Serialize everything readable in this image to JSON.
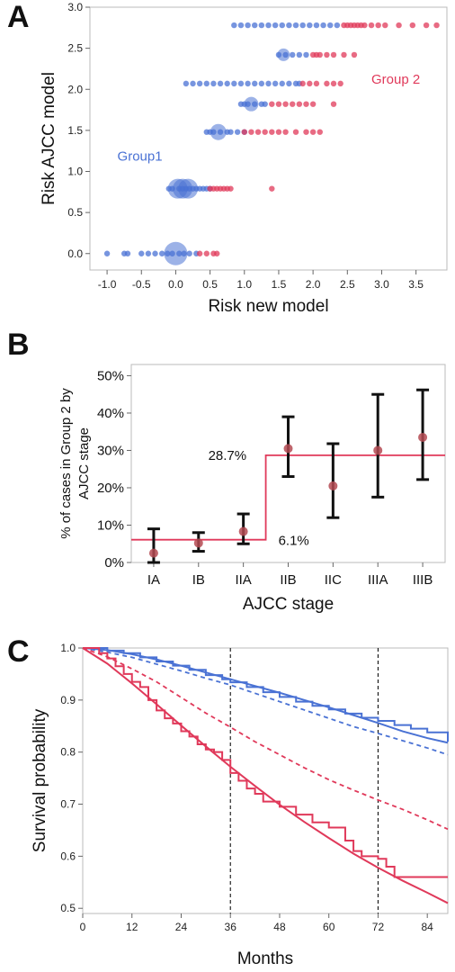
{
  "panels": [
    {
      "letter": "A",
      "chart_data": {
        "type": "scatter",
        "xlabel": "Risk new model",
        "ylabel": "Risk AJCC model",
        "xlim": [
          -1.25,
          3.95
        ],
        "ylim": [
          -0.2,
          3.0
        ],
        "x_ticks": [
          "-1.0",
          "-0.5",
          "0.0",
          "0.5",
          "1.0",
          "1.5",
          "2.0",
          "2.5",
          "3.0",
          "3.5"
        ],
        "x_tick_values": [
          -1.0,
          -0.5,
          0.0,
          0.5,
          1.0,
          1.5,
          2.0,
          2.5,
          3.0,
          3.5
        ],
        "y_ticks": [
          "0.0",
          "0.5",
          "1.0",
          "1.5",
          "2.0",
          "2.5",
          "3.0"
        ],
        "y_tick_values": [
          0.0,
          0.5,
          1.0,
          1.5,
          2.0,
          2.5,
          3.0
        ],
        "annotations": [
          {
            "text": "Group1",
            "x": -0.85,
            "y": 1.13,
            "color": "#4a72d4"
          },
          {
            "text": "Group 2",
            "x": 2.85,
            "y": 2.07,
            "color": "#e0395a"
          }
        ],
        "series": [
          {
            "name": "Group1",
            "color": "#4a72d4",
            "points": [
              {
                "y": 0.0,
                "x": [
                  -1.0,
                  -0.75,
                  -0.7,
                  -0.5,
                  -0.4,
                  -0.3,
                  -0.2,
                  -0.12,
                  -0.05,
                  0.05,
                  0.12,
                  0.2,
                  0.3
                ],
                "big": [
                  0.0
                ],
                "bigsize": 13
              },
              {
                "y": 0.79,
                "x": [
                  -0.1,
                  -0.05,
                  0.05,
                  0.1,
                  0.15,
                  0.2,
                  0.25,
                  0.3,
                  0.35,
                  0.4,
                  0.45,
                  0.5
                ],
                "big": [
                  0.03,
                  0.1,
                  0.18
                ],
                "bigsize": 11
              },
              {
                "y": 1.48,
                "x": [
                  0.45,
                  0.5,
                  0.55,
                  0.65,
                  0.75,
                  0.8,
                  0.9,
                  1.0
                ],
                "big": [
                  0.62
                ],
                "bigsize": 9
              },
              {
                "y": 1.82,
                "x": [
                  0.95,
                  1.0,
                  1.05,
                  1.15,
                  1.25,
                  1.3
                ],
                "big": [
                  1.1
                ],
                "bigsize": 8
              },
              {
                "y": 2.07,
                "x": [
                  0.15,
                  0.25,
                  0.35,
                  0.45,
                  0.55,
                  0.65,
                  0.75,
                  0.85,
                  0.95,
                  1.05,
                  1.15,
                  1.25,
                  1.35,
                  1.45,
                  1.55,
                  1.65,
                  1.75,
                  1.8
                ],
                "big": [],
                "bigsize": 0
              },
              {
                "y": 2.42,
                "x": [
                  1.5,
                  1.6,
                  1.7,
                  1.8,
                  1.9
                ],
                "big": [
                  1.57
                ],
                "bigsize": 7
              },
              {
                "y": 2.78,
                "x": [
                  0.85,
                  0.95,
                  1.05,
                  1.15,
                  1.25,
                  1.35,
                  1.45,
                  1.55,
                  1.65,
                  1.75,
                  1.85,
                  1.95,
                  2.05,
                  2.15,
                  2.25,
                  2.35
                ],
                "big": [],
                "bigsize": 0
              }
            ]
          },
          {
            "name": "Group 2",
            "color": "#e0395a",
            "points": [
              {
                "y": 0.0,
                "x": [
                  0.35,
                  0.45,
                  0.55,
                  0.6
                ],
                "big": [],
                "bigsize": 0
              },
              {
                "y": 0.79,
                "x": [
                  0.5,
                  0.55,
                  0.6,
                  0.65,
                  0.7,
                  0.75,
                  0.8,
                  1.4
                ],
                "big": [],
                "bigsize": 0
              },
              {
                "y": 1.48,
                "x": [
                  1.0,
                  1.1,
                  1.2,
                  1.3,
                  1.4,
                  1.5,
                  1.6,
                  1.75,
                  1.9,
                  2.0,
                  2.1
                ],
                "big": [],
                "bigsize": 0
              },
              {
                "y": 1.82,
                "x": [
                  1.4,
                  1.5,
                  1.6,
                  1.7,
                  1.8,
                  1.9,
                  2.0,
                  2.3
                ],
                "big": [],
                "bigsize": 0
              },
              {
                "y": 2.07,
                "x": [
                  1.85,
                  1.95,
                  2.05,
                  2.2,
                  2.3,
                  2.4
                ],
                "big": [],
                "bigsize": 0
              },
              {
                "y": 2.42,
                "x": [
                  2.0,
                  2.05,
                  2.1,
                  2.2,
                  2.3,
                  2.45,
                  2.6
                ],
                "big": [],
                "bigsize": 0
              },
              {
                "y": 2.78,
                "x": [
                  2.45,
                  2.5,
                  2.55,
                  2.6,
                  2.65,
                  2.7,
                  2.75,
                  2.85,
                  2.95,
                  3.05,
                  3.25,
                  3.45,
                  3.65,
                  3.8
                ],
                "big": [],
                "bigsize": 0
              }
            ]
          }
        ]
      }
    },
    {
      "letter": "B",
      "chart_data": {
        "type": "errorbar",
        "xlabel": "AJCC stage",
        "ylabel": "% of cases in Group 2 by AJCC stage",
        "ylabel_lines": [
          "% of cases in Group 2 by",
          "AJCC stage"
        ],
        "ylim": [
          0,
          0.53
        ],
        "y_ticks": [
          "0%",
          "10%",
          "20%",
          "30%",
          "40%",
          "50%"
        ],
        "y_tick_values": [
          0,
          0.1,
          0.2,
          0.3,
          0.4,
          0.5
        ],
        "categories": [
          "IA",
          "IB",
          "IIA",
          "IIB",
          "IIC",
          "IIIA",
          "IIIB"
        ],
        "values": [
          0.025,
          0.052,
          0.083,
          0.305,
          0.205,
          0.3,
          0.335
        ],
        "lower": [
          0.0,
          0.03,
          0.05,
          0.23,
          0.12,
          0.175,
          0.222
        ],
        "upper": [
          0.09,
          0.08,
          0.13,
          0.39,
          0.318,
          0.45,
          0.462
        ],
        "reference_levels": [
          {
            "label": "6.1%",
            "value": 0.061,
            "from": "IA",
            "to": "IIA"
          },
          {
            "label": "28.7%",
            "value": 0.287,
            "from": "IIB",
            "to": "IIIB"
          }
        ],
        "colors": {
          "point": "#b44a52",
          "bar": "#111111",
          "step": "#e0395a"
        }
      }
    },
    {
      "letter": "C",
      "chart_data": {
        "type": "line",
        "xlabel": "Months",
        "ylabel": "Survival probability",
        "xlim": [
          0,
          89
        ],
        "ylim": [
          0.49,
          1.0
        ],
        "x_ticks": [
          "0",
          "12",
          "24",
          "36",
          "48",
          "60",
          "72",
          "84"
        ],
        "x_tick_values": [
          0,
          12,
          24,
          36,
          48,
          60,
          72,
          84
        ],
        "y_ticks": [
          "0.5",
          "0.6",
          "0.7",
          "0.8",
          "0.9",
          "1.0"
        ],
        "y_tick_values": [
          0.5,
          0.6,
          0.7,
          0.8,
          0.9,
          1.0
        ],
        "vlines": [
          36,
          72
        ],
        "series": [
          {
            "group": "Group1",
            "style": "step",
            "color": "#4a72d4",
            "x": [
              0,
              6,
              10,
              14,
              18,
              22,
              26,
              30,
              34,
              36,
              40,
              44,
              48,
              52,
              56,
              60,
              64,
              68,
              72,
              76,
              80,
              84,
              89
            ],
            "y": [
              1.0,
              0.995,
              0.99,
              0.982,
              0.974,
              0.966,
              0.958,
              0.948,
              0.94,
              0.934,
              0.925,
              0.915,
              0.906,
              0.897,
              0.889,
              0.882,
              0.874,
              0.866,
              0.86,
              0.852,
              0.845,
              0.838,
              0.82
            ]
          },
          {
            "group": "Group1",
            "style": "solid",
            "color": "#4a72d4",
            "x": [
              0,
              6,
              12,
              18,
              24,
              30,
              36,
              42,
              48,
              54,
              60,
              66,
              72,
              78,
              84,
              89
            ],
            "y": [
              1.0,
              0.996,
              0.988,
              0.978,
              0.966,
              0.953,
              0.94,
              0.927,
              0.914,
              0.9,
              0.886,
              0.871,
              0.856,
              0.84,
              0.827,
              0.818
            ]
          },
          {
            "group": "Group1",
            "style": "dashed",
            "color": "#4a72d4",
            "x": [
              0,
              6,
              12,
              18,
              24,
              30,
              36,
              42,
              48,
              54,
              60,
              66,
              72,
              78,
              84,
              89
            ],
            "y": [
              1.0,
              0.992,
              0.982,
              0.969,
              0.956,
              0.942,
              0.929,
              0.913,
              0.897,
              0.881,
              0.865,
              0.849,
              0.836,
              0.822,
              0.808,
              0.795
            ]
          },
          {
            "group": "Group 2",
            "style": "step",
            "color": "#e0395a",
            "x": [
              0,
              4,
              6,
              8,
              10,
              12,
              14,
              16,
              18,
              20,
              22,
              24,
              26,
              28,
              30,
              32,
              34,
              36,
              38,
              40,
              42,
              44,
              48,
              52,
              56,
              60,
              64,
              66,
              68,
              70,
              72,
              74,
              76,
              89
            ],
            "y": [
              1.0,
              0.99,
              0.98,
              0.965,
              0.95,
              0.935,
              0.925,
              0.9,
              0.88,
              0.865,
              0.855,
              0.84,
              0.83,
              0.815,
              0.805,
              0.8,
              0.785,
              0.76,
              0.745,
              0.73,
              0.72,
              0.705,
              0.695,
              0.68,
              0.665,
              0.655,
              0.63,
              0.61,
              0.6,
              0.6,
              0.595,
              0.58,
              0.56,
              0.56
            ]
          },
          {
            "group": "Group 2",
            "style": "solid",
            "color": "#e0395a",
            "x": [
              0,
              6,
              12,
              18,
              24,
              30,
              36,
              42,
              48,
              54,
              60,
              66,
              72,
              78,
              84,
              89
            ],
            "y": [
              1.0,
              0.97,
              0.932,
              0.892,
              0.851,
              0.811,
              0.772,
              0.735,
              0.699,
              0.666,
              0.635,
              0.605,
              0.578,
              0.553,
              0.53,
              0.51
            ]
          },
          {
            "group": "Group 2",
            "style": "dashed",
            "color": "#e0395a",
            "x": [
              0,
              6,
              12,
              18,
              24,
              30,
              36,
              42,
              48,
              54,
              60,
              66,
              72,
              78,
              84,
              89
            ],
            "y": [
              1.0,
              0.983,
              0.96,
              0.935,
              0.905,
              0.875,
              0.848,
              0.82,
              0.795,
              0.77,
              0.747,
              0.727,
              0.708,
              0.69,
              0.67,
              0.652
            ]
          }
        ]
      }
    }
  ]
}
